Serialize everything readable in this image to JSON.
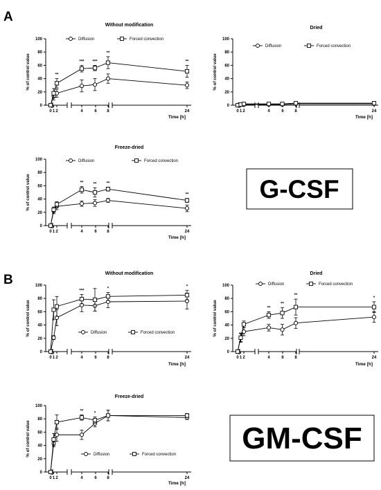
{
  "panel_letters": [
    "A",
    "B"
  ],
  "protein_labels": [
    "G-CSF",
    "GM-CSF"
  ],
  "chart_data": [
    {
      "type": "line",
      "title": "Without modification",
      "xlabel": "Time [h]",
      "ylabel": "% of control value",
      "x": [
        0,
        1,
        2,
        4,
        6,
        8,
        24
      ],
      "x_ticks": [
        "0",
        "1",
        "2",
        "4",
        "6",
        "8",
        "24"
      ],
      "ylim": [
        0,
        100
      ],
      "y_ticks": [
        "0",
        "20",
        "40",
        "60",
        "80",
        "100"
      ],
      "broken_x_axis": true,
      "legend": "top",
      "series": [
        {
          "name": "Diffusion",
          "marker": "circle",
          "values": [
            0,
            14,
            18,
            29,
            31,
            40,
            30
          ],
          "errors": [
            0,
            6,
            6,
            9,
            9,
            7,
            5
          ]
        },
        {
          "name": "Forced convection",
          "marker": "square",
          "values": [
            0,
            18,
            33,
            55,
            56,
            64,
            51
          ],
          "errors": [
            0,
            7,
            7,
            5,
            4,
            9,
            9
          ]
        }
      ],
      "significance": [
        {
          "x": 2,
          "label": "**"
        },
        {
          "x": 4,
          "label": "***"
        },
        {
          "x": 6,
          "label": "***"
        },
        {
          "x": 8,
          "label": "**"
        },
        {
          "x": 24,
          "label": "**"
        }
      ]
    },
    {
      "type": "line",
      "title": "Dried",
      "xlabel": "Time [h]",
      "ylabel": "% of control value",
      "x": [
        0,
        1,
        2,
        4,
        6,
        8,
        24
      ],
      "x_ticks": [
        "0",
        "1",
        "2",
        "4",
        "6",
        "8",
        "24"
      ],
      "ylim": [
        0,
        100
      ],
      "y_ticks": [
        "0",
        "20",
        "40",
        "60",
        "80",
        "100"
      ],
      "broken_x_axis": true,
      "legend": "top",
      "series": [
        {
          "name": "Diffusion",
          "marker": "circle",
          "values": [
            0,
            1,
            1,
            1,
            1,
            2,
            2
          ],
          "errors": [
            0,
            1,
            1,
            1,
            1,
            1,
            1
          ]
        },
        {
          "name": "Forced convection",
          "marker": "square",
          "values": [
            0,
            1,
            2,
            2,
            2,
            3,
            3
          ],
          "errors": [
            0,
            1,
            1,
            1,
            1,
            1,
            1
          ]
        }
      ],
      "significance": []
    },
    {
      "type": "line",
      "title": "Freeze-dried",
      "xlabel": "Time [h]",
      "ylabel": "% of control value",
      "x": [
        0,
        1,
        2,
        4,
        6,
        8,
        24
      ],
      "x_ticks": [
        "0",
        "1",
        "2",
        "4",
        "6",
        "8",
        "24"
      ],
      "ylim": [
        0,
        100
      ],
      "y_ticks": [
        "0",
        "20",
        "40",
        "60",
        "80",
        "100"
      ],
      "broken_x_axis": true,
      "legend": "top",
      "series": [
        {
          "name": "Diffusion",
          "marker": "circle",
          "values": [
            0,
            22,
            29,
            33,
            34,
            38,
            26
          ],
          "errors": [
            0,
            4,
            5,
            4,
            5,
            3,
            5
          ]
        },
        {
          "name": "Forced convection",
          "marker": "square",
          "values": [
            0,
            24,
            32,
            54,
            50,
            55,
            38
          ],
          "errors": [
            0,
            4,
            4,
            5,
            7,
            3,
            3
          ]
        }
      ],
      "significance": [
        {
          "x": 4,
          "label": "**"
        },
        {
          "x": 6,
          "label": "**"
        },
        {
          "x": 8,
          "label": "**"
        },
        {
          "x": 24,
          "label": "**"
        }
      ]
    },
    {
      "type": "line",
      "title": "Without modification",
      "xlabel": "Time [h]",
      "ylabel": "% of control value",
      "x": [
        0,
        1,
        2,
        4,
        6,
        8,
        24
      ],
      "x_ticks": [
        "0",
        "1",
        "2",
        "4",
        "6",
        "8",
        "24"
      ],
      "ylim": [
        0,
        100
      ],
      "y_ticks": [
        "0",
        "20",
        "40",
        "60",
        "80",
        "100"
      ],
      "broken_x_axis": true,
      "legend": "middle",
      "series": [
        {
          "name": "Diffusion",
          "marker": "circle",
          "values": [
            0,
            21,
            51,
            70,
            69,
            75,
            76
          ],
          "errors": [
            0,
            3,
            12,
            10,
            8,
            9,
            12
          ]
        },
        {
          "name": "Forced convection",
          "marker": "square",
          "values": [
            0,
            63,
            68,
            79,
            78,
            83,
            85
          ],
          "errors": [
            0,
            15,
            15,
            7,
            17,
            6,
            7
          ]
        }
      ],
      "significance": [
        {
          "x": 4,
          "label": "***"
        },
        {
          "x": 8,
          "label": "*"
        },
        {
          "x": 24,
          "label": "*"
        }
      ]
    },
    {
      "type": "line",
      "title": "Dried",
      "xlabel": "Time [h]",
      "ylabel": "% of control value",
      "x": [
        0,
        1,
        2,
        4,
        6,
        8,
        24
      ],
      "x_ticks": [
        "0",
        "1",
        "2",
        "4",
        "6",
        "8",
        "24"
      ],
      "ylim": [
        0,
        100
      ],
      "y_ticks": [
        "0",
        "20",
        "40",
        "60",
        "80",
        "100"
      ],
      "broken_x_axis": true,
      "legend": "top",
      "series": [
        {
          "name": "Diffusion",
          "marker": "circle",
          "values": [
            0,
            21,
            30,
            36,
            33,
            43,
            52
          ],
          "errors": [
            0,
            6,
            6,
            5,
            8,
            8,
            8
          ]
        },
        {
          "name": "Forced convection",
          "marker": "square",
          "values": [
            0,
            21,
            41,
            55,
            58,
            67,
            67
          ],
          "errors": [
            0,
            7,
            5,
            5,
            8,
            12,
            8
          ]
        }
      ],
      "significance": [
        {
          "x": 4,
          "label": "**"
        },
        {
          "x": 6,
          "label": "**"
        },
        {
          "x": 8,
          "label": "**"
        },
        {
          "x": 24,
          "label": "*"
        }
      ]
    },
    {
      "type": "line",
      "title": "Freeze-dried",
      "xlabel": "Time [h]",
      "ylabel": "% of control value",
      "x": [
        0,
        1,
        2,
        4,
        6,
        8,
        24
      ],
      "x_ticks": [
        "0",
        "1",
        "2",
        "4",
        "6",
        "8",
        "24"
      ],
      "ylim": [
        0,
        100
      ],
      "y_ticks": [
        "0",
        "20",
        "40",
        "60",
        "80",
        "100"
      ],
      "broken_x_axis": true,
      "legend": "middle",
      "series": [
        {
          "name": "Diffusion",
          "marker": "circle",
          "values": [
            0,
            43,
            56,
            56,
            73,
            85,
            82
          ],
          "errors": [
            0,
            5,
            10,
            7,
            5,
            8,
            3
          ]
        },
        {
          "name": "Forced convection",
          "marker": "square",
          "values": [
            0,
            49,
            75,
            82,
            78,
            85,
            85
          ],
          "errors": [
            0,
            9,
            11,
            4,
            5,
            8,
            3
          ]
        }
      ],
      "significance": [
        {
          "x": 4,
          "label": "**"
        },
        {
          "x": 6,
          "label": "*"
        }
      ]
    }
  ]
}
